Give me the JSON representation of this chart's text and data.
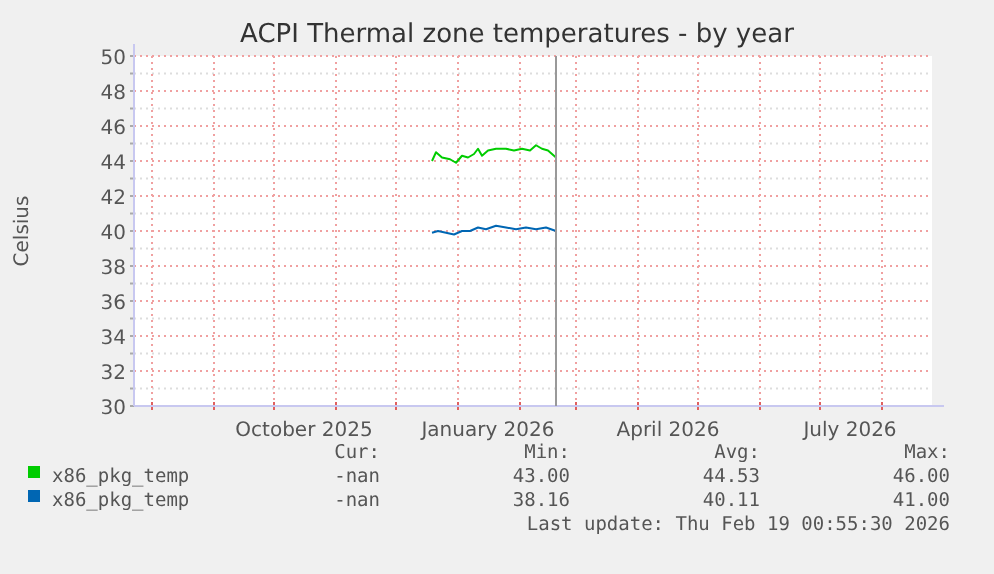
{
  "chart_data": {
    "type": "line",
    "title": "ACPI Thermal zone temperatures - by year",
    "ylabel": "Celsius",
    "xlim": [
      "2025-07-23",
      "2026-08-26"
    ],
    "xticks": [
      {
        "value": "2025-08-01",
        "label": null
      },
      {
        "value": "2025-09-01",
        "label": null
      },
      {
        "value": "2025-10-01",
        "label": null
      },
      {
        "value": "2025-10-16",
        "label": "October 2025"
      },
      {
        "value": "2025-11-01",
        "label": null
      },
      {
        "value": "2025-12-01",
        "label": null
      },
      {
        "value": "2026-01-01",
        "label": null
      },
      {
        "value": "2026-01-16",
        "label": "January 2026"
      },
      {
        "value": "2026-02-01",
        "label": null
      },
      {
        "value": "2026-03-01",
        "label": null
      },
      {
        "value": "2026-04-01",
        "label": null
      },
      {
        "value": "2026-04-16",
        "label": "April 2026"
      },
      {
        "value": "2026-05-01",
        "label": null
      },
      {
        "value": "2026-06-01",
        "label": null
      },
      {
        "value": "2026-07-01",
        "label": null
      },
      {
        "value": "2026-07-16",
        "label": "July 2026"
      },
      {
        "value": "2026-08-01",
        "label": null
      }
    ],
    "ylim": [
      30,
      50
    ],
    "yticks": [
      30,
      {
        "value": 31,
        "label": null
      },
      32,
      {
        "value": 33,
        "label": null
      },
      34,
      {
        "value": 35,
        "label": null
      },
      36,
      {
        "value": 37,
        "label": null
      },
      38,
      {
        "value": 39,
        "label": null
      },
      40,
      {
        "value": 41,
        "label": null
      },
      42,
      {
        "value": 43,
        "label": null
      },
      44,
      {
        "value": 45,
        "label": null
      },
      46,
      {
        "value": 47,
        "label": null
      },
      48,
      {
        "value": 49,
        "label": null
      },
      50
    ],
    "grid": true,
    "legend": "bottom",
    "series": [
      {
        "name": "x86_pkg_temp",
        "color": "#00cc00",
        "x": [
          "2025-12-19",
          "2025-12-21",
          "2025-12-24",
          "2025-12-28",
          "2025-12-31",
          "2026-01-03",
          "2026-01-06",
          "2026-01-09",
          "2026-01-11",
          "2026-01-13",
          "2026-01-16",
          "2026-01-20",
          "2026-01-25",
          "2026-01-29",
          "2026-02-02",
          "2026-02-06",
          "2026-02-09",
          "2026-02-12",
          "2026-02-15",
          "2026-02-19"
        ],
        "values": [
          44.0,
          44.5,
          44.2,
          44.1,
          43.9,
          44.3,
          44.2,
          44.4,
          44.7,
          44.3,
          44.6,
          44.7,
          44.7,
          44.6,
          44.7,
          44.6,
          44.9,
          44.7,
          44.6,
          44.2
        ]
      },
      {
        "name": "x86_pkg_temp",
        "color": "#0066b3",
        "x": [
          "2025-12-19",
          "2025-12-22",
          "2025-12-26",
          "2025-12-30",
          "2026-01-03",
          "2026-01-07",
          "2026-01-11",
          "2026-01-15",
          "2026-01-20",
          "2026-01-25",
          "2026-01-30",
          "2026-02-04",
          "2026-02-09",
          "2026-02-14",
          "2026-02-19"
        ],
        "values": [
          39.9,
          40.0,
          39.9,
          39.8,
          40.0,
          40.0,
          40.2,
          40.1,
          40.3,
          40.2,
          40.1,
          40.2,
          40.1,
          40.2,
          40.0
        ]
      }
    ],
    "ref_lines": [
      {
        "axis": "x",
        "value": "2026-02-19",
        "color": "#999999"
      }
    ],
    "annotations": [
      "Cur:",
      "Min:",
      "Avg:",
      "Max:",
      "-nan",
      "43.00",
      "44.53",
      "46.00",
      "-nan",
      "38.16",
      "40.11",
      "41.00",
      "Last update: Thu Feb 19 00:55:30 2026"
    ]
  }
}
